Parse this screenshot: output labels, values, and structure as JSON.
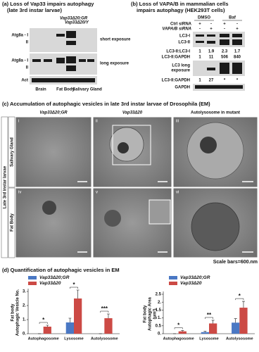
{
  "panel_a": {
    "title": "(a) Loss of Vap33 impairs autophagy",
    "subtitle": "(late 3rd instar larvae)",
    "legend": [
      "Vap33Δ20;GR",
      "Vap33Δ20/Y"
    ],
    "rows": [
      "Atg8a - I",
      "II",
      "Atg8a - I",
      "II",
      "Act"
    ],
    "exposures": [
      "short exposure",
      "long exposure"
    ],
    "tissues": [
      "Brain",
      "Fat Body",
      "Salivary Gland"
    ]
  },
  "panel_b": {
    "title": "(b) Loss of VAPA/B in mammalian cells",
    "subtitle": "impairs autophagy (HEK293T cells)",
    "treatments": [
      "DMSO",
      "Baf"
    ],
    "conditions": [
      {
        "label": "Ctrl siRNA",
        "signs": [
          "+",
          "-",
          "+",
          "-"
        ]
      },
      {
        "label": "VAPA/B siRNA",
        "signs": [
          "-",
          "+",
          "-",
          "+"
        ]
      }
    ],
    "bands": [
      "LC3-I",
      "LC3-II"
    ],
    "ratios": [
      {
        "label": "LC3-II:LC3-I",
        "values": [
          1,
          1.9,
          2.3,
          1.7
        ]
      },
      {
        "label": "LC3-II:GAPDH",
        "values": [
          1,
          11,
          506,
          840
        ]
      }
    ],
    "long_exposure": [
      "LC3 long",
      "exposure"
    ],
    "long_ratio": {
      "label": "LC3-II:GAPDH",
      "values": [
        1,
        27,
        "*",
        "*"
      ]
    },
    "loading": "GAPDH"
  },
  "panel_c": {
    "title": "(c) Accumulation of autophagic vesicles in late 3rd instar larvae of Drosophila (EM)",
    "columns": [
      "Vap33Δ20;GR",
      "Vap33Δ20",
      "Autolysosome in mutant"
    ],
    "side_label": "Late 3rd instar larvae",
    "rows": [
      "Salivary Gland",
      "Fat Body"
    ],
    "image_labels": [
      "i",
      "ii",
      "iii",
      "iv",
      "v",
      "vi"
    ],
    "scale": "Scale bars=600.nm"
  },
  "panel_d": {
    "title": "(d) Quantification of autophagic vesicles in EM"
  },
  "chart_data": [
    {
      "type": "bar",
      "ylabel": [
        "Fat body",
        "Autophagic Vesicle No."
      ],
      "categories": [
        "Autophagosome",
        "Lysosome",
        "Autolysosome"
      ],
      "series": [
        {
          "name": "Vap33Δ20;GR",
          "color": "#4a78c4",
          "values": [
            0,
            0.8,
            0
          ],
          "errors": [
            0,
            0.3,
            0
          ]
        },
        {
          "name": "Vap33Δ20",
          "color": "#cc4a45",
          "values": [
            0.5,
            2.5,
            1.1
          ],
          "errors": [
            0.1,
            0.6,
            0.3
          ]
        }
      ],
      "annotations": [
        "*",
        "*",
        "***"
      ],
      "ylim": [
        0,
        3
      ],
      "yticks": [
        {
          "value": 0,
          "label": "0."
        },
        {
          "value": 1,
          "label": "1."
        },
        {
          "value": 2,
          "label": "2."
        },
        {
          "value": 3,
          "label": "3."
        }
      ]
    },
    {
      "type": "bar",
      "ylabel": [
        "Fat body",
        "Autophagic Area",
        "(μm²)"
      ],
      "categories": [
        "Autophagosome",
        "Lysosome",
        "Autolysosome"
      ],
      "series": [
        {
          "name": "Vap33Δ20;GR",
          "color": "#4a78c4",
          "values": [
            0,
            0.1,
            0.7
          ],
          "errors": [
            0,
            0.05,
            0.25
          ]
        },
        {
          "name": "Vap33Δ20",
          "color": "#cc4a45",
          "values": [
            0.15,
            0.65,
            1.65
          ],
          "errors": [
            0.05,
            0.2,
            0.4
          ]
        }
      ],
      "annotations": [
        "*",
        "**",
        "*"
      ],
      "ylim": [
        0,
        2.5
      ],
      "yticks": [
        {
          "value": 0,
          "label": "0."
        },
        0.5,
        {
          "value": 1,
          "label": "1."
        },
        1.5,
        {
          "value": 2,
          "label": "2."
        },
        2.5
      ]
    }
  ]
}
